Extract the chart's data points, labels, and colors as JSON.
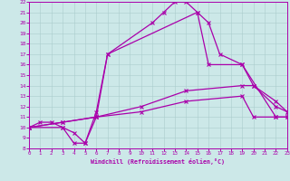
{
  "xlabel": "Windchill (Refroidissement éolien,°C)",
  "background_color": "#cce8e8",
  "line_color": "#aa00aa",
  "grid_color": "#aacccc",
  "xlim": [
    0,
    23
  ],
  "ylim": [
    8,
    22
  ],
  "xticks": [
    0,
    1,
    2,
    3,
    4,
    5,
    6,
    7,
    8,
    9,
    10,
    11,
    12,
    13,
    14,
    15,
    16,
    17,
    18,
    19,
    20,
    21,
    22,
    23
  ],
  "yticks": [
    8,
    9,
    10,
    11,
    12,
    13,
    14,
    15,
    16,
    17,
    18,
    19,
    20,
    21,
    22
  ],
  "series": [
    {
      "x": [
        0,
        3,
        4,
        5,
        6,
        7,
        11,
        12,
        13,
        14,
        15,
        16,
        17,
        19,
        20,
        22,
        23
      ],
      "y": [
        10,
        10,
        8.5,
        8.5,
        11.5,
        17,
        20,
        21,
        22,
        22,
        21,
        20,
        17,
        16,
        14,
        12,
        11.5
      ]
    },
    {
      "x": [
        0,
        1,
        2,
        3,
        4,
        5,
        6,
        7,
        15,
        16,
        19,
        22,
        23
      ],
      "y": [
        10,
        10.5,
        10.5,
        10,
        9.5,
        8.5,
        11,
        17,
        21,
        16,
        16,
        11,
        11
      ]
    },
    {
      "x": [
        0,
        3,
        6,
        10,
        14,
        19,
        20,
        22,
        23
      ],
      "y": [
        10,
        10.5,
        11,
        12,
        13.5,
        14,
        14,
        12.5,
        11.5
      ]
    },
    {
      "x": [
        0,
        3,
        6,
        10,
        14,
        19,
        20,
        22,
        23
      ],
      "y": [
        10,
        10.5,
        11,
        11.5,
        12.5,
        13,
        11,
        11,
        11
      ]
    }
  ]
}
